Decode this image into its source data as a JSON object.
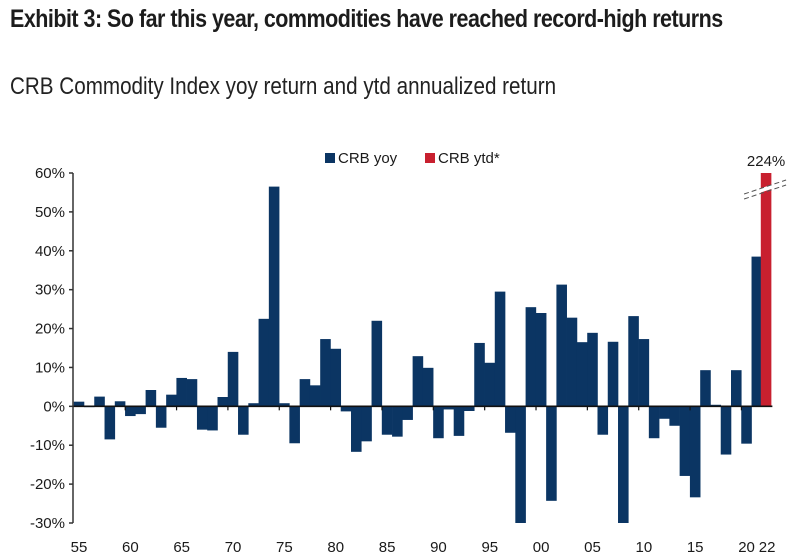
{
  "header": {
    "title": "Exhibit 3:  So far this year, commodities have reached record-high returns",
    "subtitle": "CRB Commodity Index yoy return and ytd annualized return"
  },
  "colors": {
    "yoy": "#0b3563",
    "ytd": "#c8202f",
    "axis": "#333333"
  },
  "chart_data": {
    "type": "bar",
    "title": "So far this year, commodities have reached record-high returns",
    "subtitle": "CRB Commodity Index yoy return and ytd annualized return",
    "xlabel": "",
    "ylabel": "",
    "ylim": [
      -30,
      60
    ],
    "yticks": [
      60,
      50,
      40,
      30,
      20,
      10,
      0,
      -10,
      -20,
      -30
    ],
    "ytick_labels": [
      "60%",
      "50%",
      "40%",
      "30%",
      "20%",
      "10%",
      "0%",
      "-10%",
      "-20%",
      "-30%"
    ],
    "xtick_labels": [
      {
        "year": 1955,
        "label": "55"
      },
      {
        "year": 1960,
        "label": "60"
      },
      {
        "year": 1965,
        "label": "65"
      },
      {
        "year": 1970,
        "label": "70"
      },
      {
        "year": 1975,
        "label": "75"
      },
      {
        "year": 1980,
        "label": "80"
      },
      {
        "year": 1985,
        "label": "85"
      },
      {
        "year": 1990,
        "label": "90"
      },
      {
        "year": 1995,
        "label": "95"
      },
      {
        "year": 2000,
        "label": "00"
      },
      {
        "year": 2005,
        "label": "05"
      },
      {
        "year": 2010,
        "label": "10"
      },
      {
        "year": 2015,
        "label": "15"
      },
      {
        "year": 2020,
        "label": "20"
      },
      {
        "year": 2022,
        "label": "22"
      }
    ],
    "grid": false,
    "legend_position": "top-center",
    "legend": [
      "CRB yoy",
      "CRB ytd*"
    ],
    "series": [
      {
        "name": "CRB yoy",
        "x": [
          1955,
          1956,
          1957,
          1958,
          1959,
          1960,
          1961,
          1962,
          1963,
          1964,
          1965,
          1966,
          1967,
          1968,
          1969,
          1970,
          1971,
          1972,
          1973,
          1974,
          1975,
          1976,
          1977,
          1978,
          1979,
          1980,
          1981,
          1982,
          1983,
          1984,
          1985,
          1986,
          1987,
          1988,
          1989,
          1990,
          1991,
          1992,
          1993,
          1994,
          1995,
          1996,
          1997,
          1998,
          1999,
          2000,
          2001,
          2002,
          2003,
          2004,
          2005,
          2006,
          2007,
          2008,
          2009,
          2010,
          2011,
          2012,
          2013,
          2014,
          2015,
          2016,
          2017,
          2018,
          2019,
          2020,
          2021
        ],
        "values": [
          1.2,
          -0.2,
          2.5,
          -8.5,
          1.3,
          -2.5,
          -2.0,
          4.2,
          -5.5,
          3.0,
          7.3,
          7.0,
          -6.0,
          -6.2,
          2.4,
          14.0,
          -7.3,
          0.8,
          22.5,
          56.5,
          0.8,
          -9.5,
          7.0,
          5.4,
          17.3,
          14.8,
          -1.3,
          -11.7,
          -9.0,
          22.0,
          -7.3,
          -7.8,
          -3.5,
          12.9,
          9.9,
          -8.2,
          -0.8,
          -7.6,
          -1.2,
          16.3,
          11.2,
          29.5,
          -6.8,
          -30.0,
          25.5,
          24.0,
          -24.3,
          31.3,
          22.8,
          16.5,
          18.9,
          -7.3,
          16.6,
          -30.0,
          23.2,
          17.3,
          -8.2,
          -3.2,
          -5.0,
          -17.9,
          -23.4,
          9.3,
          0.4,
          -12.4,
          9.3,
          -9.6,
          38.5
        ]
      },
      {
        "name": "CRB ytd*",
        "x": [
          2022
        ],
        "values": [
          224
        ],
        "data_label": "224%",
        "axis_break": true
      }
    ]
  }
}
